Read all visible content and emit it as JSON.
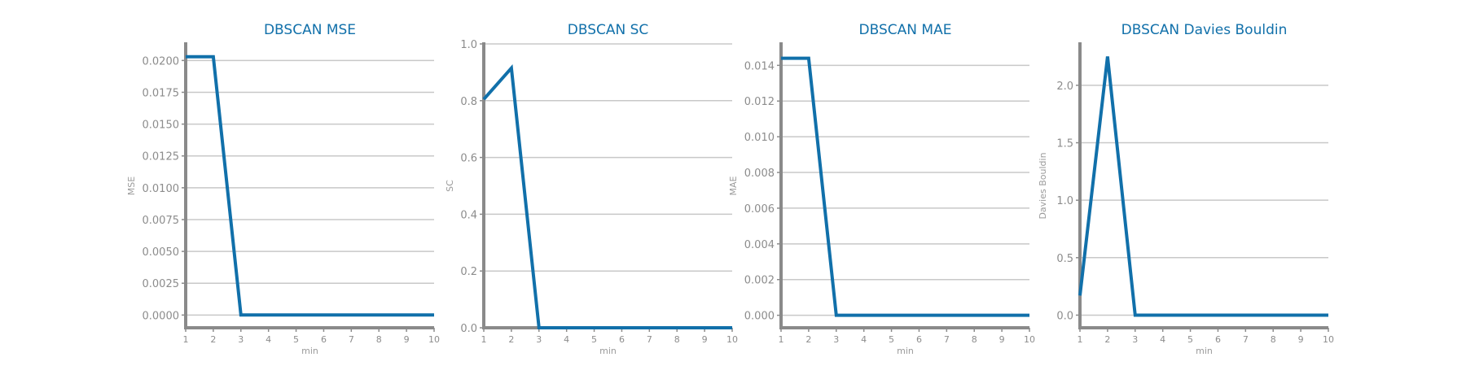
{
  "colors": {
    "series": "#1170aa",
    "title": "#1170aa"
  },
  "chart_data": [
    {
      "type": "line",
      "title": "DBSCAN MSE",
      "xlabel": "min",
      "ylabel": "MSE",
      "x": [
        1,
        2,
        3,
        4,
        5,
        6,
        7,
        8,
        9,
        10
      ],
      "values": [
        0.0203,
        0.0203,
        0.0,
        0.0,
        0.0,
        0.0,
        0.0,
        0.0,
        0.0,
        0.0
      ],
      "xlim": [
        1,
        10
      ],
      "ylim": [
        -0.001,
        0.0213
      ],
      "yticks": [
        0.0,
        0.0025,
        0.005,
        0.0075,
        0.01,
        0.0125,
        0.015,
        0.0175,
        0.02
      ],
      "ytick_labels": [
        "0.0000",
        "0.0025",
        "0.0050",
        "0.0075",
        "0.0100",
        "0.0125",
        "0.0150",
        "0.0175",
        "0.0200"
      ],
      "xticks": [
        "1",
        "2",
        "3",
        "4",
        "5",
        "6",
        "7",
        "8",
        "9",
        "10"
      ],
      "grid": "horizontal"
    },
    {
      "type": "line",
      "title": "DBSCAN SC",
      "xlabel": "min",
      "ylabel": "SC",
      "x": [
        1,
        2,
        3,
        4,
        5,
        6,
        7,
        8,
        9,
        10
      ],
      "values": [
        0.805,
        0.915,
        0.0,
        0.0,
        0.0,
        0.0,
        0.0,
        0.0,
        0.0,
        0.0
      ],
      "xlim": [
        1,
        10
      ],
      "ylim": [
        0,
        1.0
      ],
      "yticks": [
        0.0,
        0.2,
        0.4,
        0.6,
        0.8,
        1.0
      ],
      "ytick_labels": [
        "0.0",
        "0.2",
        "0.4",
        "0.6",
        "0.8",
        "1.0"
      ],
      "xticks": [
        "1",
        "2",
        "3",
        "4",
        "5",
        "6",
        "7",
        "8",
        "9",
        "10"
      ],
      "grid": "horizontal"
    },
    {
      "type": "line",
      "title": "DBSCAN MAE",
      "xlabel": "min",
      "ylabel": "MAE",
      "x": [
        1,
        2,
        3,
        4,
        5,
        6,
        7,
        8,
        9,
        10
      ],
      "values": [
        0.0144,
        0.0144,
        0.0,
        0.0,
        0.0,
        0.0,
        0.0,
        0.0,
        0.0,
        0.0
      ],
      "xlim": [
        1,
        10
      ],
      "ylim": [
        -0.0007,
        0.0152
      ],
      "yticks": [
        0.0,
        0.002,
        0.004,
        0.006,
        0.008,
        0.01,
        0.012,
        0.014
      ],
      "ytick_labels": [
        "0.000",
        "0.002",
        "0.004",
        "0.006",
        "0.008",
        "0.010",
        "0.012",
        "0.014"
      ],
      "xticks": [
        "1",
        "2",
        "3",
        "4",
        "5",
        "6",
        "7",
        "8",
        "9",
        "10"
      ],
      "grid": "horizontal"
    },
    {
      "type": "line",
      "title": "DBSCAN Davies Bouldin",
      "xlabel": "min",
      "ylabel": "Davies Bouldin",
      "x": [
        1,
        2,
        3,
        4,
        5,
        6,
        7,
        8,
        9,
        10
      ],
      "values": [
        0.17,
        2.25,
        0.0,
        0.0,
        0.0,
        0.0,
        0.0,
        0.0,
        0.0,
        0.0
      ],
      "xlim": [
        1,
        10
      ],
      "ylim": [
        -0.11,
        2.36
      ],
      "yticks": [
        0.0,
        0.5,
        1.0,
        1.5,
        2.0
      ],
      "ytick_labels": [
        "0.0",
        "0.5",
        "1.0",
        "1.5",
        "2.0"
      ],
      "xticks": [
        "1",
        "2",
        "3",
        "4",
        "5",
        "6",
        "7",
        "8",
        "9",
        "10"
      ],
      "grid": "horizontal"
    }
  ]
}
